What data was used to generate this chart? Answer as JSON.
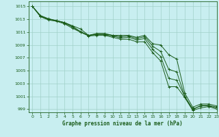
{
  "title": "Graphe pression niveau de la mer (hPa)",
  "background_color": "#c8eef0",
  "grid_color": "#a0d0c8",
  "line_color": "#1a5c1a",
  "marker_color": "#1a5c1a",
  "xlim": [
    -0.5,
    23
  ],
  "ylim": [
    998.5,
    1015.8
  ],
  "yticks": [
    999,
    1001,
    1003,
    1005,
    1007,
    1009,
    1011,
    1013,
    1015
  ],
  "xticks": [
    0,
    1,
    2,
    3,
    4,
    5,
    6,
    7,
    8,
    9,
    10,
    11,
    12,
    13,
    14,
    15,
    16,
    17,
    18,
    19,
    20,
    21,
    22,
    23
  ],
  "series": [
    [
      1015.0,
      1013.6,
      1013.1,
      1012.8,
      1012.5,
      1012.0,
      1011.5,
      1010.5,
      1010.8,
      1010.8,
      1010.5,
      1010.5,
      1010.5,
      1010.2,
      1010.5,
      1009.2,
      1009.0,
      1007.5,
      1006.8,
      1001.5,
      999.3,
      999.8,
      999.8,
      999.5
    ],
    [
      1015.0,
      1013.5,
      1013.0,
      1012.8,
      1012.5,
      1011.9,
      1011.1,
      1010.5,
      1010.7,
      1010.7,
      1010.5,
      1010.3,
      1010.4,
      1010.0,
      1010.3,
      1008.8,
      1008.0,
      1005.2,
      1004.8,
      1001.0,
      998.9,
      999.6,
      999.6,
      999.3
    ],
    [
      1015.0,
      1013.5,
      1013.0,
      1012.8,
      1012.4,
      1011.8,
      1011.0,
      1010.5,
      1010.6,
      1010.6,
      1010.4,
      1010.1,
      1010.2,
      1009.8,
      1010.0,
      1008.3,
      1007.2,
      1003.8,
      1003.5,
      1001.0,
      999.0,
      999.5,
      999.5,
      999.2
    ],
    [
      1015.0,
      1013.4,
      1012.9,
      1012.7,
      1012.3,
      1011.6,
      1011.0,
      1010.4,
      1010.5,
      1010.5,
      1010.2,
      1009.9,
      1009.9,
      1009.5,
      1009.5,
      1007.8,
      1006.5,
      1002.5,
      1002.5,
      1000.8,
      998.8,
      999.2,
      999.4,
      999.0
    ]
  ],
  "figsize": [
    3.2,
    2.0
  ],
  "dpi": 100
}
